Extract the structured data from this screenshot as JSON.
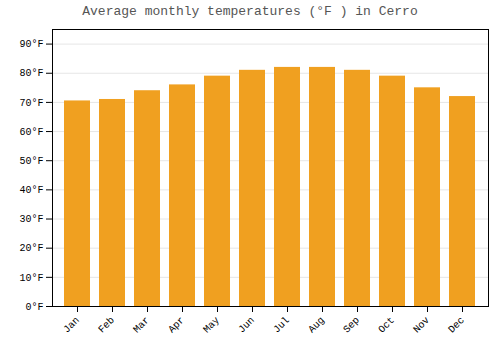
{
  "chart_data": {
    "type": "bar",
    "title": "Average monthly temperatures (°F ) in Cerro",
    "categories": [
      "Jan",
      "Feb",
      "Mar",
      "Apr",
      "May",
      "Jun",
      "Jul",
      "Aug",
      "Sep",
      "Oct",
      "Nov",
      "Dec"
    ],
    "values": [
      70.5,
      71.0,
      74.0,
      76.0,
      79.0,
      81.0,
      82.0,
      82.0,
      81.0,
      79.0,
      75.0,
      72.0
    ],
    "color": "#F0A020",
    "ylim": [
      0,
      95
    ],
    "yticks": [
      {
        "value": 0,
        "label": "0°F"
      },
      {
        "value": 10,
        "label": "10°F"
      },
      {
        "value": 20,
        "label": "20°F"
      },
      {
        "value": 30,
        "label": "30°F"
      },
      {
        "value": 40,
        "label": "40°F"
      },
      {
        "value": 50,
        "label": "50°F"
      },
      {
        "value": 60,
        "label": "60°F"
      },
      {
        "value": 70,
        "label": "70°F"
      },
      {
        "value": 80,
        "label": "80°F"
      },
      {
        "value": 90,
        "label": "90°F"
      }
    ],
    "grid": true
  }
}
